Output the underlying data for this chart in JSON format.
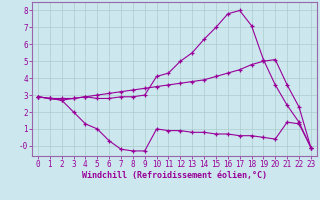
{
  "xlabel": "Windchill (Refroidissement éolien,°C)",
  "background_color": "#cce8ee",
  "grid_color": "#aacccc",
  "line_color": "#990099",
  "spine_color": "#9966aa",
  "x": [
    0,
    1,
    2,
    3,
    4,
    5,
    6,
    7,
    8,
    9,
    10,
    11,
    12,
    13,
    14,
    15,
    16,
    17,
    18,
    19,
    20,
    21,
    22,
    23
  ],
  "line1": [
    2.9,
    2.8,
    2.7,
    2.8,
    2.9,
    2.8,
    2.8,
    2.9,
    2.9,
    3.0,
    4.1,
    4.3,
    5.0,
    5.5,
    6.3,
    7.0,
    7.8,
    8.0,
    7.1,
    5.1,
    3.6,
    2.4,
    1.4,
    -0.1
  ],
  "line2": [
    2.9,
    2.8,
    2.8,
    2.8,
    2.9,
    3.0,
    3.1,
    3.2,
    3.3,
    3.4,
    3.5,
    3.6,
    3.7,
    3.8,
    3.9,
    4.1,
    4.3,
    4.5,
    4.8,
    5.0,
    5.1,
    3.6,
    2.3,
    -0.1
  ],
  "line3": [
    2.9,
    2.8,
    2.7,
    2.0,
    1.3,
    1.0,
    0.3,
    -0.2,
    -0.3,
    -0.3,
    1.0,
    0.9,
    0.9,
    0.8,
    0.8,
    0.7,
    0.7,
    0.6,
    0.6,
    0.5,
    0.4,
    1.4,
    1.3,
    -0.1
  ],
  "ylim": [
    -0.6,
    8.5
  ],
  "xlim": [
    -0.5,
    23.5
  ],
  "yticks": [
    0,
    1,
    2,
    3,
    4,
    5,
    6,
    7,
    8
  ],
  "ytick_labels": [
    "-0",
    "1",
    "2",
    "3",
    "4",
    "5",
    "6",
    "7",
    "8"
  ],
  "xticks": [
    0,
    1,
    2,
    3,
    4,
    5,
    6,
    7,
    8,
    9,
    10,
    11,
    12,
    13,
    14,
    15,
    16,
    17,
    18,
    19,
    20,
    21,
    22,
    23
  ],
  "tick_fontsize": 5.5,
  "xlabel_fontsize": 6.0,
  "linewidth": 0.8,
  "markersize": 3.5
}
